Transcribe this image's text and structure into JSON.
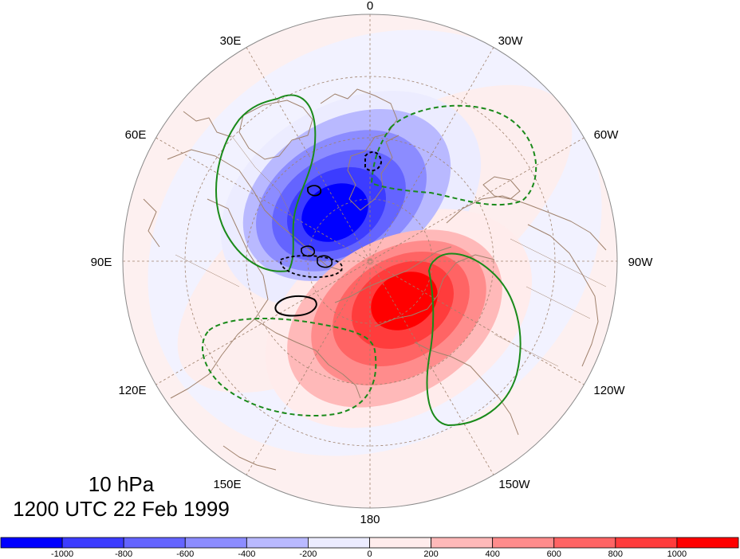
{
  "map": {
    "pressure_level": "10 hPa",
    "valid_time": "1200 UTC 22 Feb 1999",
    "longitude_labels": {
      "deg0": "0",
      "w30": "30W",
      "w60": "60W",
      "w90": "90W",
      "w120": "120W",
      "w150": "150W",
      "deg180": "180",
      "e150": "150E",
      "e120": "120E",
      "e90": "90E",
      "e60": "60E",
      "e30": "30E"
    },
    "colorbar": {
      "ticks": [
        "-1000",
        "-800",
        "-600",
        "-400",
        "-200",
        "0",
        "200",
        "400",
        "600",
        "800",
        "1000"
      ],
      "colors": [
        "#0000ff",
        "#3c3cff",
        "#6464ff",
        "#8c8cff",
        "#b9b9ff",
        "#ececff",
        "#ffecec",
        "#ffb9b9",
        "#ff8c8c",
        "#ff6464",
        "#ff3c3c",
        "#ff0000"
      ]
    },
    "contour_colors": {
      "green": "#1a8a1a",
      "black": "#000000",
      "coast": "#a0826d"
    }
  }
}
